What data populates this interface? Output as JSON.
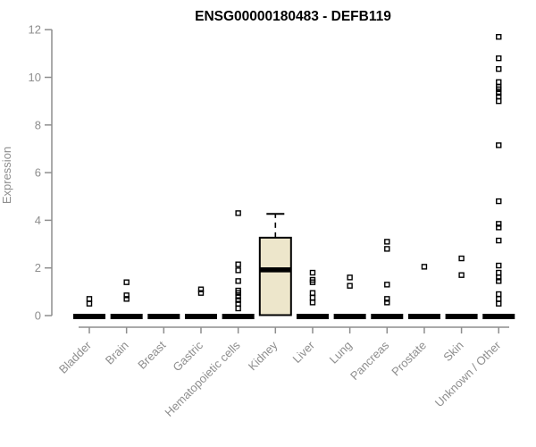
{
  "window": {
    "background": "#ffffff"
  },
  "chart_data": {
    "type": "boxplot",
    "title": "ENSG00000180483 - DEFB119",
    "ylabel": "Expression",
    "xlabel": "",
    "ylim": [
      0,
      12
    ],
    "yticks": [
      0,
      2,
      4,
      6,
      8,
      10,
      12
    ],
    "grid": false,
    "legend": "none",
    "x_tick_rotation_deg": 45,
    "axis_color": "#8E8E8E",
    "data_color": "#000000",
    "box_fill_color": "#EDE6CB",
    "outlier_marker": "open-square",
    "categories": [
      "Bladder",
      "Brain",
      "Breast",
      "Gastric",
      "Hematopoietic cells",
      "Kidney",
      "Liver",
      "Lung",
      "Pancreas",
      "Prostate",
      "Skin",
      "Unknown / Other"
    ],
    "boxes": [
      {
        "category": "Bladder",
        "q1": 0,
        "median": 0,
        "q3": 0,
        "whisker_low": 0,
        "whisker_high": 0,
        "outliers": [
          0.7,
          0.5
        ]
      },
      {
        "category": "Brain",
        "q1": 0,
        "median": 0,
        "q3": 0,
        "whisker_low": 0,
        "whisker_high": 0,
        "outliers": [
          1.4,
          0.85,
          0.7
        ]
      },
      {
        "category": "Breast",
        "q1": 0,
        "median": 0,
        "q3": 0,
        "whisker_low": 0,
        "whisker_high": 0,
        "outliers": []
      },
      {
        "category": "Gastric",
        "q1": 0,
        "median": 0,
        "q3": 0,
        "whisker_low": 0,
        "whisker_high": 0,
        "outliers": [
          1.1,
          0.95
        ]
      },
      {
        "category": "Hematopoietic cells",
        "q1": 0,
        "median": 0,
        "q3": 0,
        "whisker_low": 0,
        "whisker_high": 0,
        "outliers": [
          4.3,
          2.15,
          1.9,
          1.45,
          1.05,
          0.95,
          0.8,
          0.65,
          0.5,
          0.3
        ]
      },
      {
        "category": "Kidney",
        "q1": 0.02,
        "median": 1.92,
        "q3": 3.27,
        "whisker_low": 0.02,
        "whisker_high": 4.27,
        "outliers": []
      },
      {
        "category": "Liver",
        "q1": 0,
        "median": 0,
        "q3": 0,
        "whisker_low": 0,
        "whisker_high": 0,
        "outliers": [
          1.8,
          1.5,
          1.4,
          0.95,
          0.75,
          0.55
        ]
      },
      {
        "category": "Lung",
        "q1": 0,
        "median": 0,
        "q3": 0,
        "whisker_low": 0,
        "whisker_high": 0,
        "outliers": [
          1.6,
          1.25
        ]
      },
      {
        "category": "Pancreas",
        "q1": 0,
        "median": 0,
        "q3": 0,
        "whisker_low": 0,
        "whisker_high": 0,
        "outliers": [
          3.1,
          2.8,
          1.3,
          0.7,
          0.55
        ]
      },
      {
        "category": "Prostate",
        "q1": 0,
        "median": 0,
        "q3": 0,
        "whisker_low": 0,
        "whisker_high": 0,
        "outliers": [
          2.05
        ]
      },
      {
        "category": "Skin",
        "q1": 0,
        "median": 0,
        "q3": 0,
        "whisker_low": 0,
        "whisker_high": 0,
        "outliers": [
          2.4,
          1.7
        ]
      },
      {
        "category": "Unknown / Other",
        "q1": 0,
        "median": 0,
        "q3": 0,
        "whisker_low": 0,
        "whisker_high": 0,
        "outliers": [
          11.7,
          10.8,
          10.35,
          9.8,
          9.6,
          9.5,
          9.35,
          9.2,
          9.0,
          7.15,
          4.8,
          3.85,
          3.7,
          3.15,
          2.1,
          1.8,
          1.6,
          1.45,
          0.9,
          0.7,
          0.5
        ]
      }
    ]
  }
}
